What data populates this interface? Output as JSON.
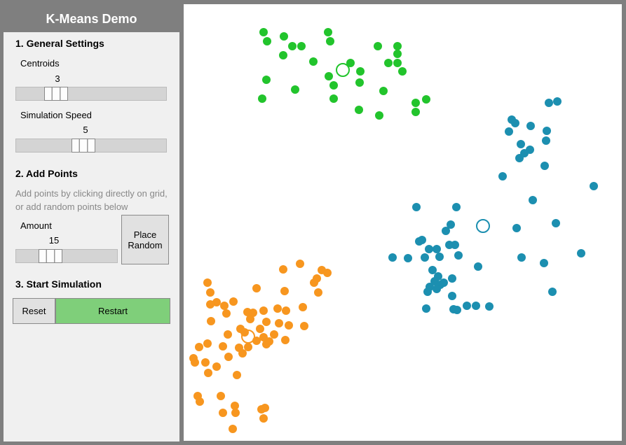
{
  "app": {
    "title": "K-Means Demo",
    "general": {
      "heading": "1. General Settings",
      "centroids_label": "Centroids",
      "centroids_value": 3,
      "speed_label": "Simulation Speed",
      "speed_value": 5
    },
    "add": {
      "heading": "2. Add Points",
      "hint": "Add points by clicking directly on grid, or add random points below",
      "amount_label": "Amount",
      "amount_value": 15,
      "place_button": "Place Random"
    },
    "start": {
      "heading": "3. Start Simulation",
      "reset_button": "Reset",
      "restart_button": "Restart"
    }
  }
}
